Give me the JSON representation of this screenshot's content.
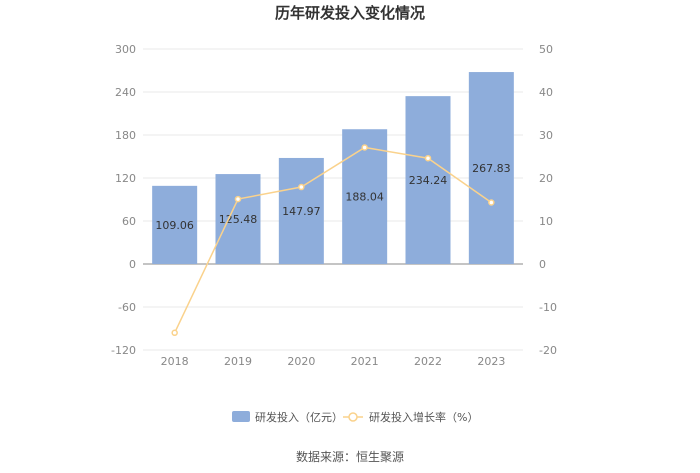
{
  "chart_data": {
    "type": "bar",
    "title": "历年研发投入变化情况",
    "categories": [
      "2018",
      "2019",
      "2020",
      "2021",
      "2022",
      "2023"
    ],
    "series": [
      {
        "name": "研发投入（亿元）",
        "type": "bar",
        "axis": "left",
        "color": "#8EADDB",
        "values": [
          109.06,
          125.48,
          147.97,
          188.04,
          234.24,
          267.83
        ]
      },
      {
        "name": "研发投入增长率（%）",
        "type": "line",
        "axis": "right",
        "color": "#FAD28C",
        "values": [
          -16,
          15.1,
          17.9,
          27.1,
          24.6,
          14.3
        ]
      }
    ],
    "y_left": {
      "min": -120,
      "max": 300,
      "ticks": [
        300,
        240,
        180,
        120,
        60,
        0,
        -60,
        -120
      ]
    },
    "y_right": {
      "min": -20,
      "max": 50,
      "ticks": [
        50,
        40,
        30,
        20,
        10,
        0,
        -10,
        -20
      ]
    },
    "grid": true,
    "legend_position": "bottom"
  },
  "source_text": "数据来源：恒生聚源"
}
